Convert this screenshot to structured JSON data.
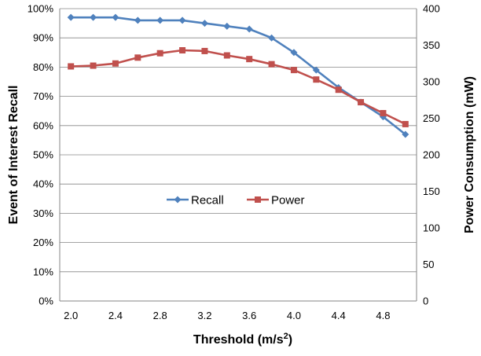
{
  "chart_data": {
    "type": "line",
    "title": "",
    "x": [
      2.0,
      2.2,
      2.4,
      2.6,
      2.8,
      3.0,
      3.2,
      3.4,
      3.6,
      3.8,
      4.0,
      4.2,
      4.4,
      4.6,
      4.8,
      5.0
    ],
    "xlim": [
      1.9,
      5.1
    ],
    "xticks": [
      "2.0",
      "2.4",
      "2.8",
      "3.2",
      "3.6",
      "4.0",
      "4.4",
      "4.8"
    ],
    "xlabel": {
      "main": "Threshold  (m/s",
      "sup": "2",
      "close": ")"
    },
    "ylabel_left": "Event of Interest Recall",
    "ylim_left": [
      0,
      100
    ],
    "yticks_left": [
      "0%",
      "10%",
      "20%",
      "30%",
      "40%",
      "50%",
      "60%",
      "70%",
      "80%",
      "90%",
      "100%"
    ],
    "ylabel_right": "Power Consumption  (mW)",
    "ylim_right": [
      0,
      400
    ],
    "yticks_right": [
      "0",
      "50",
      "100",
      "150",
      "200",
      "250",
      "300",
      "350",
      "400"
    ],
    "grid": "horizontal",
    "legend": "center",
    "series": [
      {
        "name": "Recall",
        "axis": "left",
        "unit": "%",
        "color": "#4f81bd",
        "marker": "diamond",
        "values": [
          97,
          97,
          97,
          96,
          96,
          96,
          95,
          94,
          93,
          90,
          85,
          79,
          73,
          68,
          63,
          57
        ]
      },
      {
        "name": "Power",
        "axis": "right",
        "unit": "mW",
        "color": "#c0504d",
        "marker": "square",
        "values": [
          321,
          322,
          325,
          333,
          339,
          343,
          342,
          336,
          331,
          324,
          316,
          303,
          289,
          272,
          257,
          242
        ]
      }
    ]
  }
}
